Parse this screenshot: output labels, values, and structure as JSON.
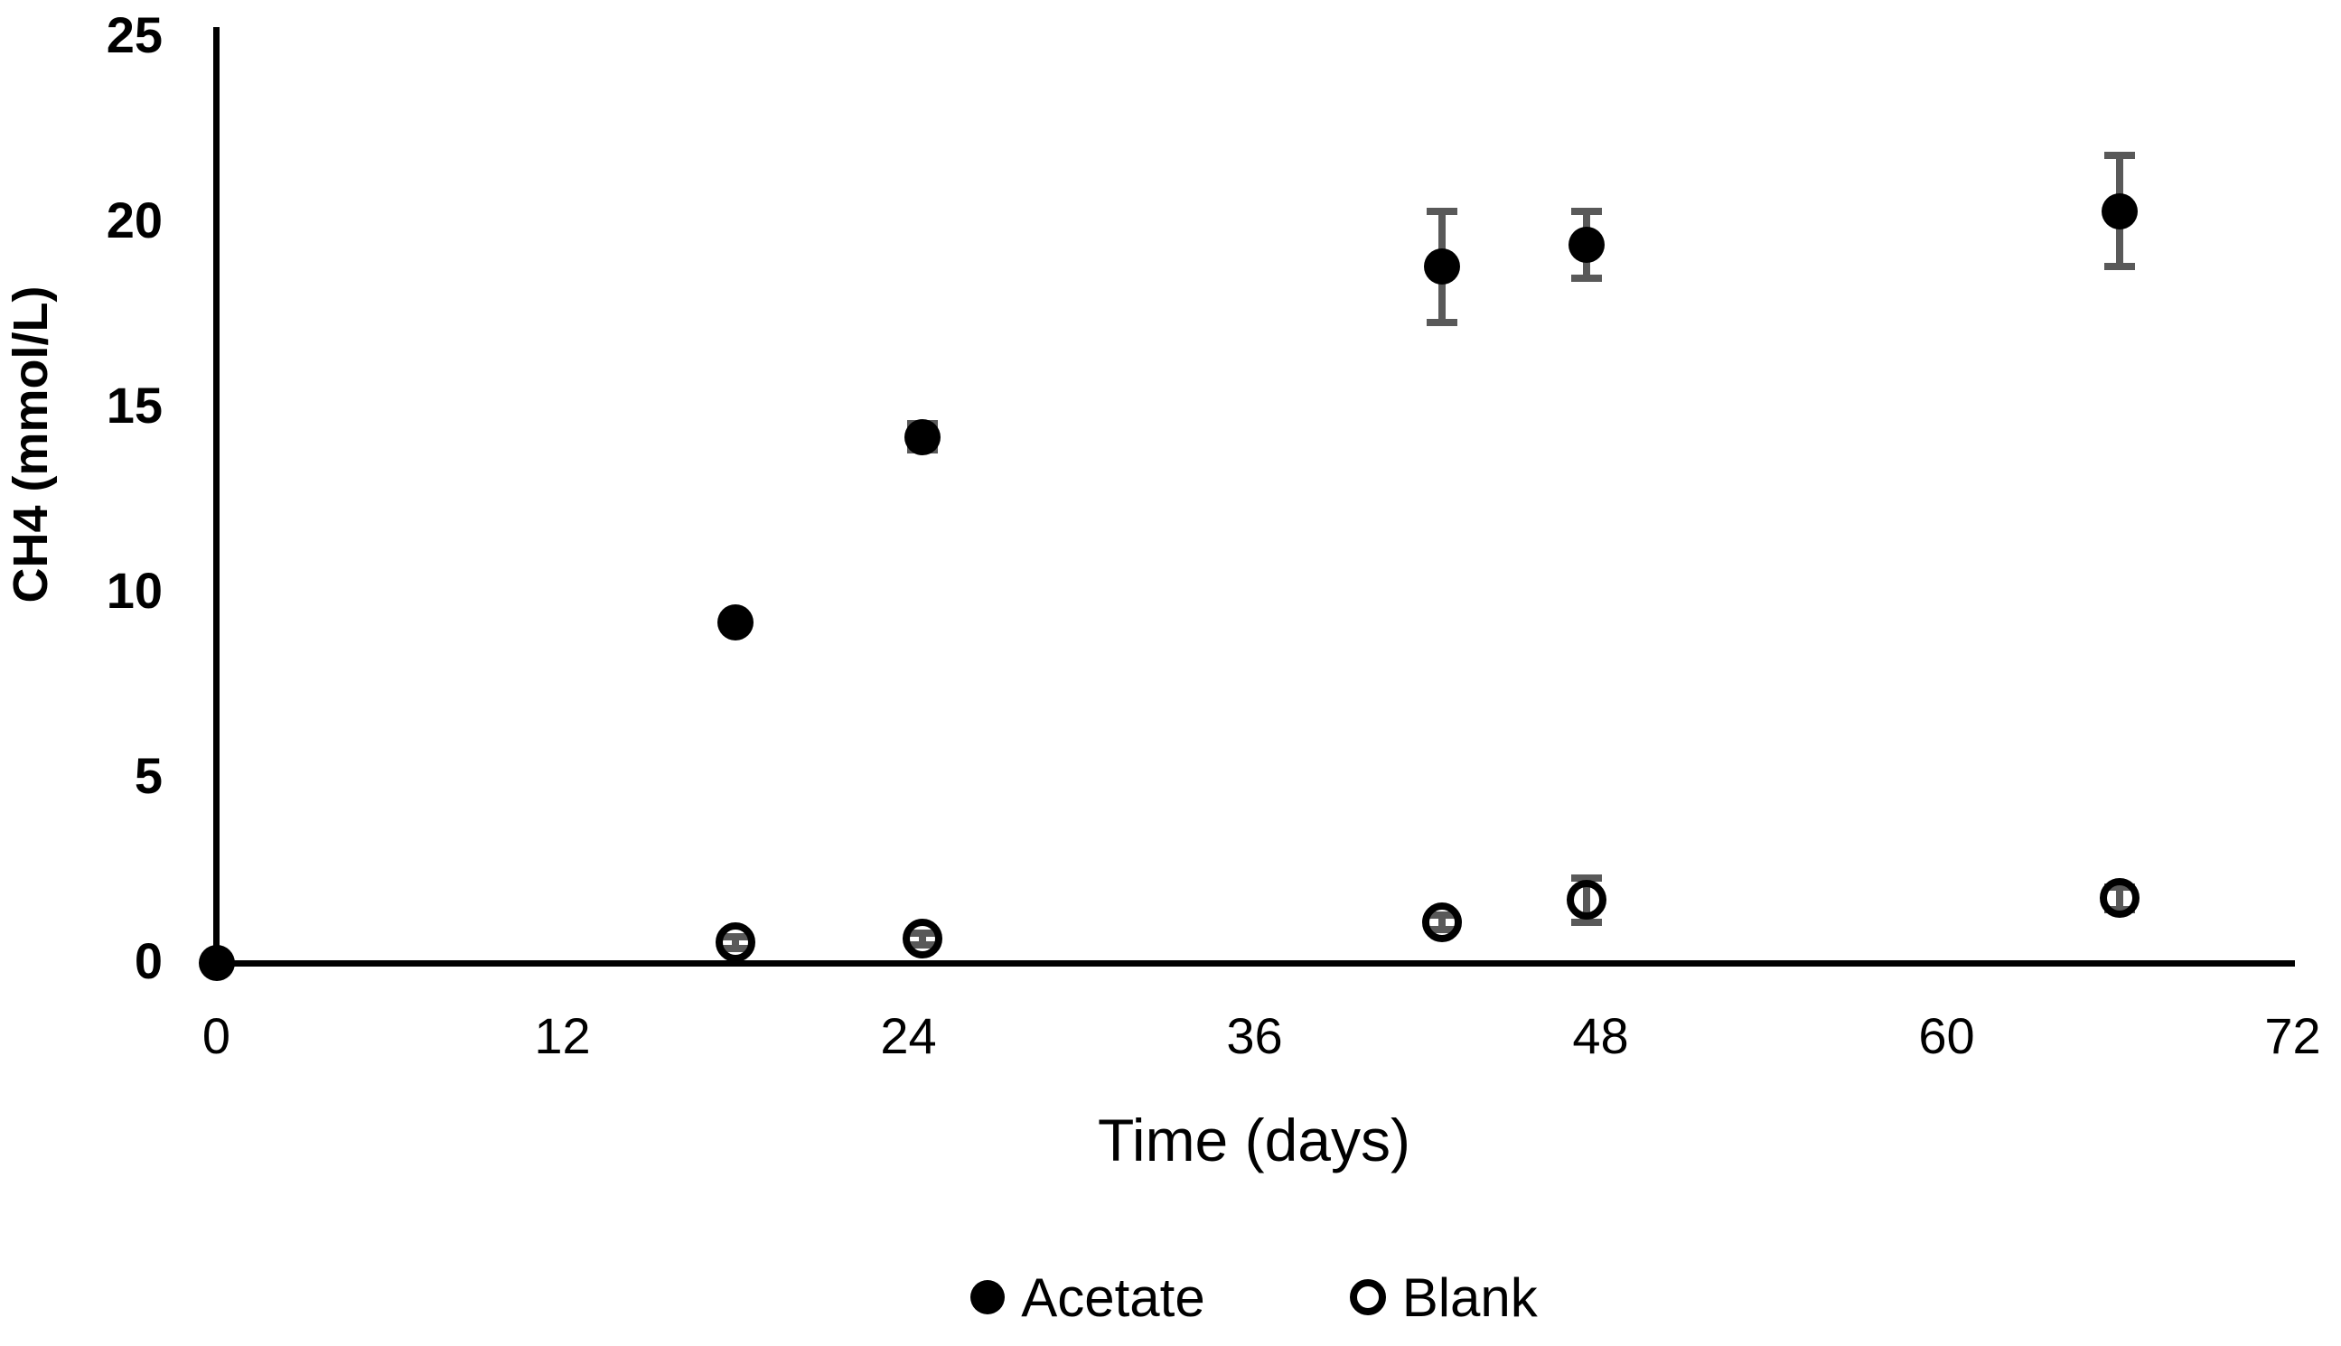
{
  "figure": {
    "background": "#ffffff"
  },
  "chart_data": {
    "type": "scatter",
    "title": "",
    "xlabel": "Time (days)",
    "ylabel": "CH4 (mmol/L)",
    "xlim": [
      0,
      72
    ],
    "ylim": [
      0,
      25
    ],
    "x_ticks": [
      0,
      12,
      24,
      36,
      48,
      60,
      72
    ],
    "y_ticks": [
      0,
      5,
      10,
      15,
      20,
      25
    ],
    "grid": false,
    "legend_position": "bottom-center",
    "colors": {
      "marker": "#000000",
      "error_bar": "#595959",
      "axis": "#000000",
      "text": "#000000"
    },
    "series": [
      {
        "name": "Acetate",
        "marker": "filled-circle",
        "points": [
          {
            "x": 0,
            "y": 0
          },
          {
            "x": 18,
            "y": 9.2
          },
          {
            "x": 24.5,
            "y": 14.2,
            "err": 0.35
          },
          {
            "x": 42.5,
            "y": 18.8,
            "err": 1.5
          },
          {
            "x": 47.5,
            "y": 19.4,
            "err": 0.9
          },
          {
            "x": 66,
            "y": 20.3,
            "err": 1.5
          }
        ]
      },
      {
        "name": "Blank",
        "marker": "open-circle",
        "points": [
          {
            "x": 18,
            "y": 0.55,
            "err": 0.15
          },
          {
            "x": 24.5,
            "y": 0.65,
            "err": 0.15
          },
          {
            "x": 42.5,
            "y": 1.1,
            "err": 0.2
          },
          {
            "x": 47.5,
            "y": 1.7,
            "err": 0.6
          },
          {
            "x": 66,
            "y": 1.75,
            "err": 0.3
          }
        ]
      }
    ]
  }
}
